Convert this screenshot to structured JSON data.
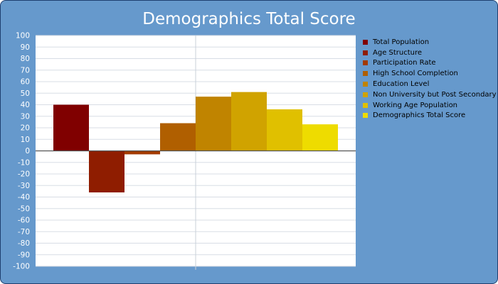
{
  "chart_data": {
    "type": "bar",
    "title": "Demographics Total Score",
    "xlabel": "",
    "ylabel": "",
    "ylim": [
      -100,
      100
    ],
    "ytick_step": 10,
    "grid": true,
    "legend_position": "right",
    "series": [
      {
        "name": "Total Population",
        "value": 40,
        "color": "#800000"
      },
      {
        "name": "Age Structure",
        "value": -36,
        "color": "#8f1d00"
      },
      {
        "name": "Participation Rate",
        "value": -3,
        "color": "#a33a00"
      },
      {
        "name": "High School Completion",
        "value": 24,
        "color": "#b05f00"
      },
      {
        "name": "Education Level",
        "value": 47,
        "color": "#c08400"
      },
      {
        "name": "Non University but Post Secondary",
        "value": 51,
        "color": "#d0a300"
      },
      {
        "name": "Working Age Population",
        "value": 36,
        "color": "#e0c000"
      },
      {
        "name": "Demographics Total Score",
        "value": 23,
        "color": "#eedc00"
      }
    ]
  }
}
